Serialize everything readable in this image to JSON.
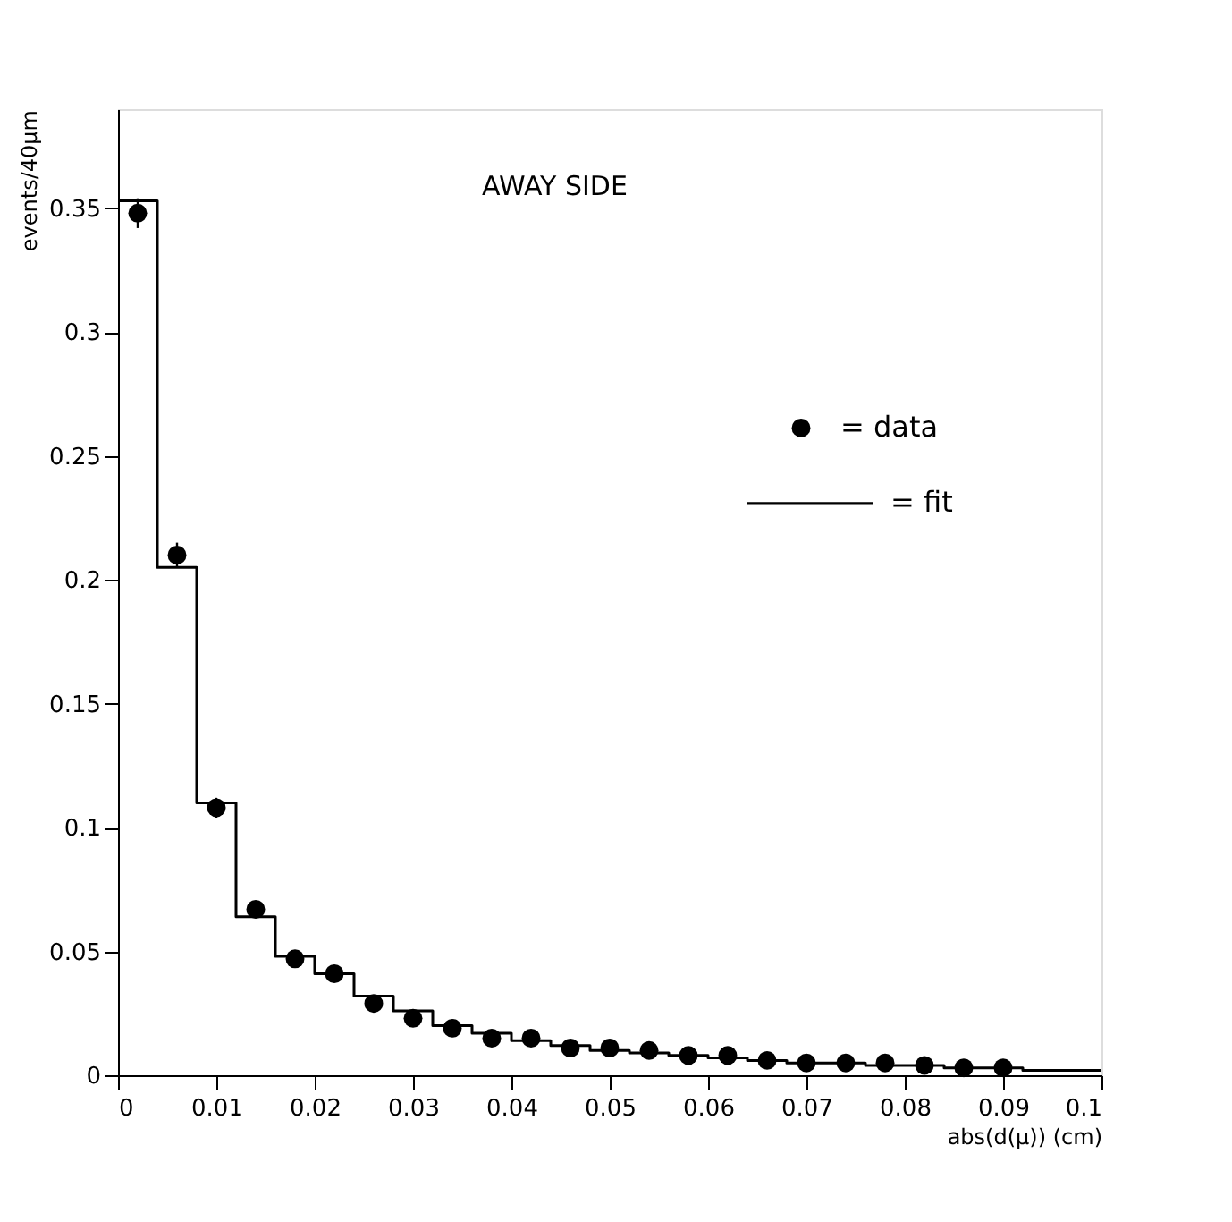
{
  "chart_data": {
    "type": "histogram",
    "xlabel": "abs(d(μ)) (cm)",
    "ylabel": "events/40μm",
    "annotations": [
      "AWAY SIDE"
    ],
    "bins": [
      0,
      0.004,
      0.008,
      0.012,
      0.016,
      0.02,
      0.024,
      0.028,
      0.032,
      0.036,
      0.04,
      0.044,
      0.048,
      0.052,
      0.056,
      0.06,
      0.064,
      0.068,
      0.072,
      0.076,
      0.08,
      0.084,
      0.088,
      0.092,
      0.096,
      0.1
    ],
    "series": [
      {
        "name": "= fit",
        "color": "#000000",
        "values": [
          0.353,
          0.205,
          0.11,
          0.064,
          0.048,
          0.041,
          0.032,
          0.026,
          0.02,
          0.017,
          0.014,
          0.012,
          0.01,
          0.009,
          0.008,
          0.007,
          0.006,
          0.005,
          0.005,
          0.004,
          0.004,
          0.003,
          0.003,
          0.002,
          0.002
        ]
      },
      {
        "name": "= data",
        "type": "scatter",
        "color": "#000000",
        "x": [
          0.002,
          0.006,
          0.01,
          0.014,
          0.018,
          0.022,
          0.026,
          0.03,
          0.034,
          0.038,
          0.042,
          0.046,
          0.05,
          0.054,
          0.058,
          0.062,
          0.066,
          0.07,
          0.074,
          0.078,
          0.082,
          0.086,
          0.09
        ],
        "values": [
          0.348,
          0.21,
          0.108,
          0.067,
          0.047,
          0.041,
          0.029,
          0.023,
          0.019,
          0.015,
          0.015,
          0.011,
          0.011,
          0.01,
          0.008,
          0.008,
          0.006,
          0.005,
          0.005,
          0.005,
          0.004,
          0.003,
          0.003
        ],
        "errors": [
          0.006,
          0.005,
          0.004,
          0.002,
          0.002,
          0.002,
          0.002,
          0.002,
          0.001,
          0.001,
          0.001,
          0.001,
          0.001,
          0.001,
          0.001,
          0.001,
          0.001,
          0.001,
          0.001,
          0.001,
          0.001,
          0.001,
          0.001
        ]
      }
    ],
    "xlim": [
      0,
      0.1
    ],
    "xticks": [
      0,
      0.01,
      0.02,
      0.03,
      0.04,
      0.05,
      0.06,
      0.07,
      0.08,
      0.09,
      0.1
    ],
    "ylim": [
      0,
      0.39
    ],
    "yticks": [
      0,
      0.05,
      0.1,
      0.15,
      0.2,
      0.25,
      0.3,
      0.35
    ],
    "marker": "circle",
    "legend": "right",
    "grid": false
  }
}
